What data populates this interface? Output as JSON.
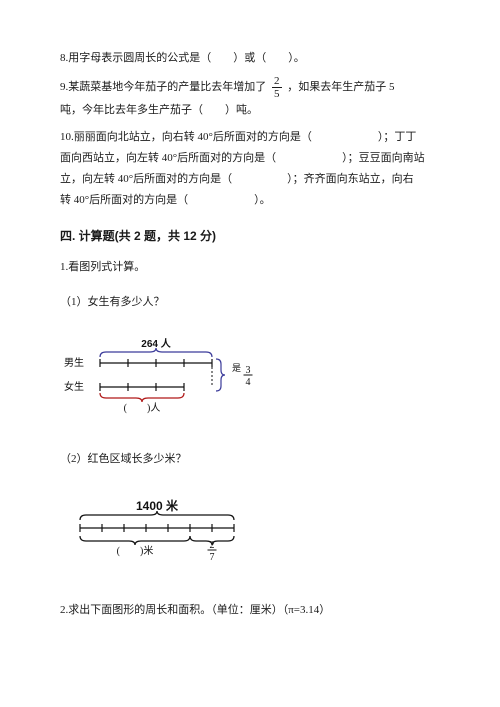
{
  "q8": {
    "text_a": "8.用字母表示圆周长的公式是（　　）或（　　）。"
  },
  "q9": {
    "prefix": "9.某蔬菜基地今年茄子的产量比去年增加了",
    "frac_num": "2",
    "frac_den": "5",
    "mid": "，如果去年生产茄子 5",
    "line2": "吨，今年比去年多生产茄子（　　）吨。"
  },
  "q10": {
    "line1": "10.丽丽面向北站立，向右转 40°后所面对的方向是（　　　　　　）；丁丁",
    "line2": "面向西站立，向左转 40°后所面对的方向是（　　　　　　）；豆豆面向南站",
    "line3": "立，向左转 40°后所面对的方向是（　　　　　）；齐齐面向东站立，向右",
    "line4": "转 40°后所面对的方向是（　　　　　　）。"
  },
  "section4": {
    "title": "四. 计算题(共 2 题，共 12 分)"
  },
  "q4_1": {
    "title": "1.看图列式计算。",
    "part1_label": "（1）女生有多少人？",
    "part2_label": "（2）红色区域长多少米？",
    "diagram1": {
      "top_label": "264 人",
      "row1_label": "男生",
      "row2_label": "女生",
      "frac_num": "3",
      "frac_den": "4",
      "bottom_label": "(　　)人",
      "top_brace_color": "#3b3b9a",
      "bottom_brace_color": "#b01818",
      "right_brace_color": "#3b3b9a",
      "stroke": "#111111"
    },
    "diagram2": {
      "top_label": "1400 米",
      "bottom_left_label": "(　　)米",
      "frac_num": "2",
      "frac_den": "7",
      "top_brace_color": "#111111",
      "bottom_brace_color": "#111111",
      "stroke": "#111111"
    }
  },
  "q4_2": {
    "title": "2.求出下面图形的周长和面积。（单位：厘米）（π=3.14）"
  }
}
